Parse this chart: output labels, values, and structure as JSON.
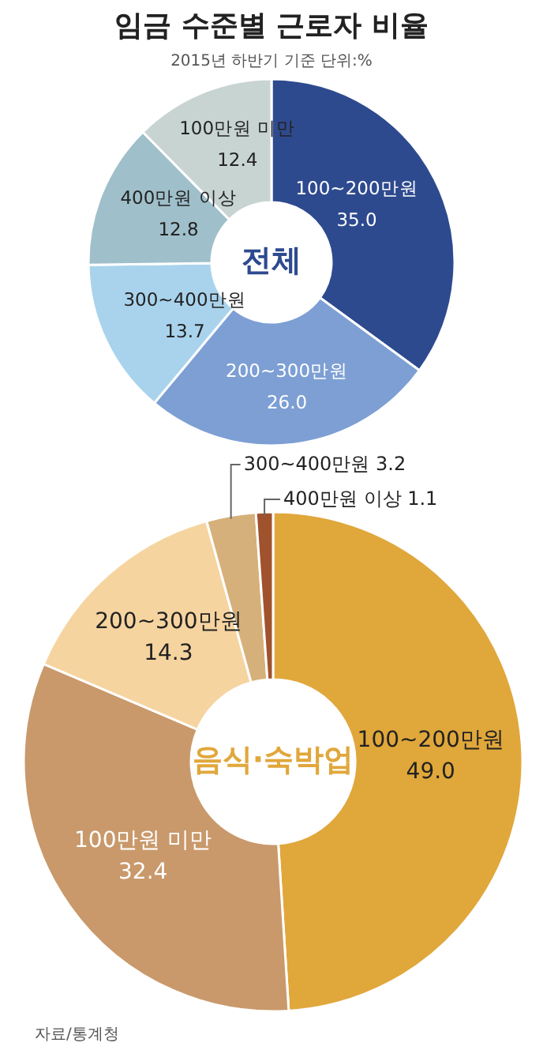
{
  "chart_data": [
    {
      "type": "donut",
      "title": "임금 수준별 근로자 비율",
      "subtitle": "2015년 하반기 기준  단위:%",
      "categories": [
        "100~200만원",
        "200~300만원",
        "300~400만원",
        "400만원 이상",
        "100만원 미만"
      ],
      "values": [
        35.0,
        26.0,
        13.7,
        12.8,
        12.4
      ],
      "value_labels": [
        "35.0",
        "26.0",
        "13.7",
        "12.8",
        "12.4"
      ],
      "colors": [
        "#2e4a8f",
        "#7d9fd4",
        "#a9d3ec",
        "#9fbfca",
        "#c8d4d2"
      ],
      "data_labels": true,
      "annotations": [
        "전체"
      ]
    },
    {
      "type": "donut",
      "categories": [
        "100~200만원",
        "100만원 미만",
        "200~300만원",
        "300~400만원",
        "400만원 이상"
      ],
      "values": [
        49.0,
        32.4,
        14.3,
        3.2,
        1.1
      ],
      "value_labels": [
        "49.0",
        "32.4",
        "14.3",
        "3.2",
        "1.1"
      ],
      "colors": [
        "#e0a73b",
        "#c9996b",
        "#f6d4a0",
        "#d6b07a",
        "#a0522d"
      ],
      "data_labels": true,
      "annotations": [
        "음식·숙박업",
        "자료/통계청"
      ]
    }
  ]
}
